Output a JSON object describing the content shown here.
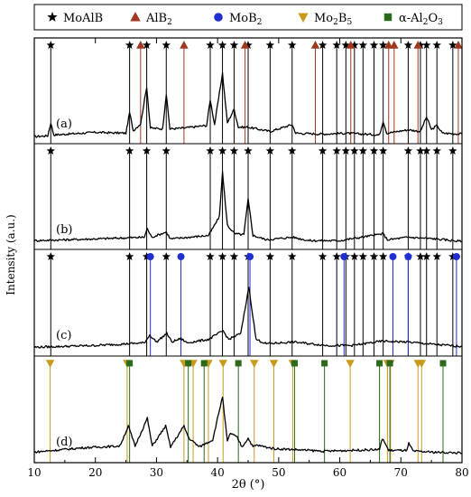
{
  "chart_data": {
    "type": "line",
    "title": "",
    "xlabel": "2θ (°)",
    "ylabel": "Intensity (a.u.)",
    "xlim": [
      10,
      80
    ],
    "xticks": [
      "10",
      "20",
      "30",
      "40",
      "50",
      "60",
      "70",
      "80"
    ],
    "legend_position": "top",
    "legend": [
      {
        "name": "MoAlB",
        "marker": "star",
        "color": "#000000"
      },
      {
        "name": "AlB",
        "sub": "2",
        "marker": "triangle-up",
        "color": "#a0371f"
      },
      {
        "name": "MoB",
        "sub": "2",
        "marker": "circle",
        "color": "#1f2fd0"
      },
      {
        "name": "Mo",
        "sub": "2",
        "name2": "B",
        "sub2": "5",
        "marker": "triangle-down",
        "color": "#c89a1c"
      },
      {
        "name": "α-Al",
        "sub": "2",
        "name2": "O",
        "sub2": "3",
        "marker": "square",
        "color": "#2a6a1a"
      }
    ],
    "panels": [
      {
        "label": "(a)",
        "phases": [
          "MoAlB",
          "AlB2"
        ],
        "reference_lines": {
          "MoAlB": [
            12.7,
            25.6,
            28.4,
            31.6,
            38.8,
            40.8,
            42.7,
            45.0,
            48.6,
            52.2,
            57.2,
            59.5,
            61.0,
            62.4,
            63.8,
            65.6,
            67.1,
            71.2,
            73.2,
            74.2,
            75.9,
            78.5
          ],
          "AlB2": [
            27.4,
            34.5,
            44.5,
            56.0,
            61.8,
            68.0,
            68.9,
            72.8,
            79.4
          ]
        },
        "pattern": [
          [
            10,
            0.04
          ],
          [
            12.2,
            0.05
          ],
          [
            12.7,
            0.2
          ],
          [
            13.2,
            0.06
          ],
          [
            20,
            0.09
          ],
          [
            25,
            0.08
          ],
          [
            25.6,
            0.32
          ],
          [
            26.2,
            0.11
          ],
          [
            27.4,
            0.19
          ],
          [
            28.4,
            0.62
          ],
          [
            29,
            0.14
          ],
          [
            31,
            0.13
          ],
          [
            31.6,
            0.53
          ],
          [
            32.2,
            0.13
          ],
          [
            34.5,
            0.14
          ],
          [
            38.2,
            0.17
          ],
          [
            38.8,
            0.47
          ],
          [
            39.5,
            0.18
          ],
          [
            40.8,
            0.78
          ],
          [
            41.6,
            0.2
          ],
          [
            42.7,
            0.36
          ],
          [
            43.4,
            0.15
          ],
          [
            45.0,
            0.15
          ],
          [
            48.6,
            0.1
          ],
          [
            52.2,
            0.18
          ],
          [
            52.8,
            0.08
          ],
          [
            57.2,
            0.07
          ],
          [
            61.0,
            0.08
          ],
          [
            66.5,
            0.06
          ],
          [
            67.1,
            0.22
          ],
          [
            67.7,
            0.08
          ],
          [
            71.2,
            0.12
          ],
          [
            73.2,
            0.1
          ],
          [
            74.2,
            0.27
          ],
          [
            75.0,
            0.12
          ],
          [
            75.9,
            0.17
          ],
          [
            76.8,
            0.08
          ],
          [
            80,
            0.07
          ]
        ]
      },
      {
        "label": "(b)",
        "phases": [
          "MoAlB"
        ],
        "reference_lines": {
          "MoAlB": [
            12.7,
            25.6,
            28.4,
            31.6,
            38.8,
            40.8,
            42.7,
            45.0,
            48.6,
            52.2,
            57.2,
            59.5,
            61.0,
            62.4,
            63.8,
            65.6,
            67.1,
            71.2,
            73.2,
            74.2,
            75.9,
            78.5
          ]
        },
        "pattern": [
          [
            10,
            0.06
          ],
          [
            20,
            0.08
          ],
          [
            28,
            0.1
          ],
          [
            28.5,
            0.2
          ],
          [
            29.2,
            0.1
          ],
          [
            31.6,
            0.16
          ],
          [
            32.3,
            0.08
          ],
          [
            38.5,
            0.12
          ],
          [
            39.1,
            0.19
          ],
          [
            40.3,
            0.34
          ],
          [
            40.8,
            0.86
          ],
          [
            41.6,
            0.24
          ],
          [
            42.8,
            0.14
          ],
          [
            44.3,
            0.13
          ],
          [
            45.0,
            0.54
          ],
          [
            45.8,
            0.12
          ],
          [
            48,
            0.07
          ],
          [
            52.3,
            0.1
          ],
          [
            55,
            0.06
          ],
          [
            60,
            0.06
          ],
          [
            67.1,
            0.14
          ],
          [
            67.8,
            0.07
          ],
          [
            71.2,
            0.1
          ],
          [
            75.8,
            0.08
          ],
          [
            80,
            0.05
          ]
        ]
      },
      {
        "label": "(c)",
        "phases": [
          "MoAlB",
          "MoB2"
        ],
        "reference_lines": {
          "MoAlB": [
            12.7,
            25.6,
            28.4,
            31.6,
            38.8,
            40.8,
            42.7,
            45.0,
            48.6,
            52.2,
            57.2,
            59.5,
            61.0,
            62.4,
            63.8,
            65.6,
            67.1,
            71.2,
            73.2,
            74.2,
            75.9,
            78.5
          ],
          "MoB2": [
            29.0,
            34.0,
            45.3,
            60.7,
            68.7,
            71.2,
            79.1
          ]
        },
        "pattern": [
          [
            10,
            0.06
          ],
          [
            20,
            0.08
          ],
          [
            28,
            0.11
          ],
          [
            28.9,
            0.2
          ],
          [
            30,
            0.12
          ],
          [
            31.7,
            0.22
          ],
          [
            32.5,
            0.12
          ],
          [
            34.0,
            0.16
          ],
          [
            35,
            0.11
          ],
          [
            38.5,
            0.15
          ],
          [
            40.9,
            0.25
          ],
          [
            41.8,
            0.15
          ],
          [
            43.8,
            0.22
          ],
          [
            44.7,
            0.58
          ],
          [
            45.1,
            0.76
          ],
          [
            46.3,
            0.15
          ],
          [
            48,
            0.1
          ],
          [
            52.4,
            0.12
          ],
          [
            58,
            0.08
          ],
          [
            62,
            0.08
          ],
          [
            67,
            0.13
          ],
          [
            71.2,
            0.12
          ],
          [
            75.8,
            0.09
          ],
          [
            80,
            0.07
          ]
        ]
      },
      {
        "label": "(d)",
        "phases": [
          "Mo2B5",
          "α-Al2O3"
        ],
        "reference_lines": {
          "Mo2B5": [
            12.6,
            25.2,
            34.5,
            36.0,
            38.5,
            40.9,
            46.0,
            49.2,
            52.3,
            61.7,
            67.8,
            68.3,
            72.8,
            73.4
          ],
          "α-Al2O3": [
            25.6,
            35.2,
            37.8,
            43.4,
            52.6,
            57.5,
            66.5,
            68.2,
            76.9
          ]
        },
        "pattern": [
          [
            10,
            0.08
          ],
          [
            18,
            0.13
          ],
          [
            24,
            0.15
          ],
          [
            25.4,
            0.38
          ],
          [
            26.5,
            0.15
          ],
          [
            28.5,
            0.47
          ],
          [
            29.3,
            0.15
          ],
          [
            31.5,
            0.38
          ],
          [
            32.3,
            0.14
          ],
          [
            34.5,
            0.38
          ],
          [
            35.3,
            0.24
          ],
          [
            36.0,
            0.2
          ],
          [
            37,
            0.14
          ],
          [
            38.6,
            0.2
          ],
          [
            39.2,
            0.22
          ],
          [
            40.8,
            0.72
          ],
          [
            41.6,
            0.2
          ],
          [
            42.1,
            0.3
          ],
          [
            43.2,
            0.25
          ],
          [
            44.0,
            0.14
          ],
          [
            45.0,
            0.24
          ],
          [
            45.8,
            0.14
          ],
          [
            46.4,
            0.16
          ],
          [
            49.2,
            0.12
          ],
          [
            52.3,
            0.11
          ],
          [
            57.5,
            0.09
          ],
          [
            61.5,
            0.1
          ],
          [
            66.5,
            0.11
          ],
          [
            67.0,
            0.24
          ],
          [
            68.0,
            0.1
          ],
          [
            71.0,
            0.1
          ],
          [
            71.3,
            0.18
          ],
          [
            72.0,
            0.09
          ],
          [
            75,
            0.08
          ],
          [
            80,
            0.07
          ]
        ]
      }
    ]
  }
}
